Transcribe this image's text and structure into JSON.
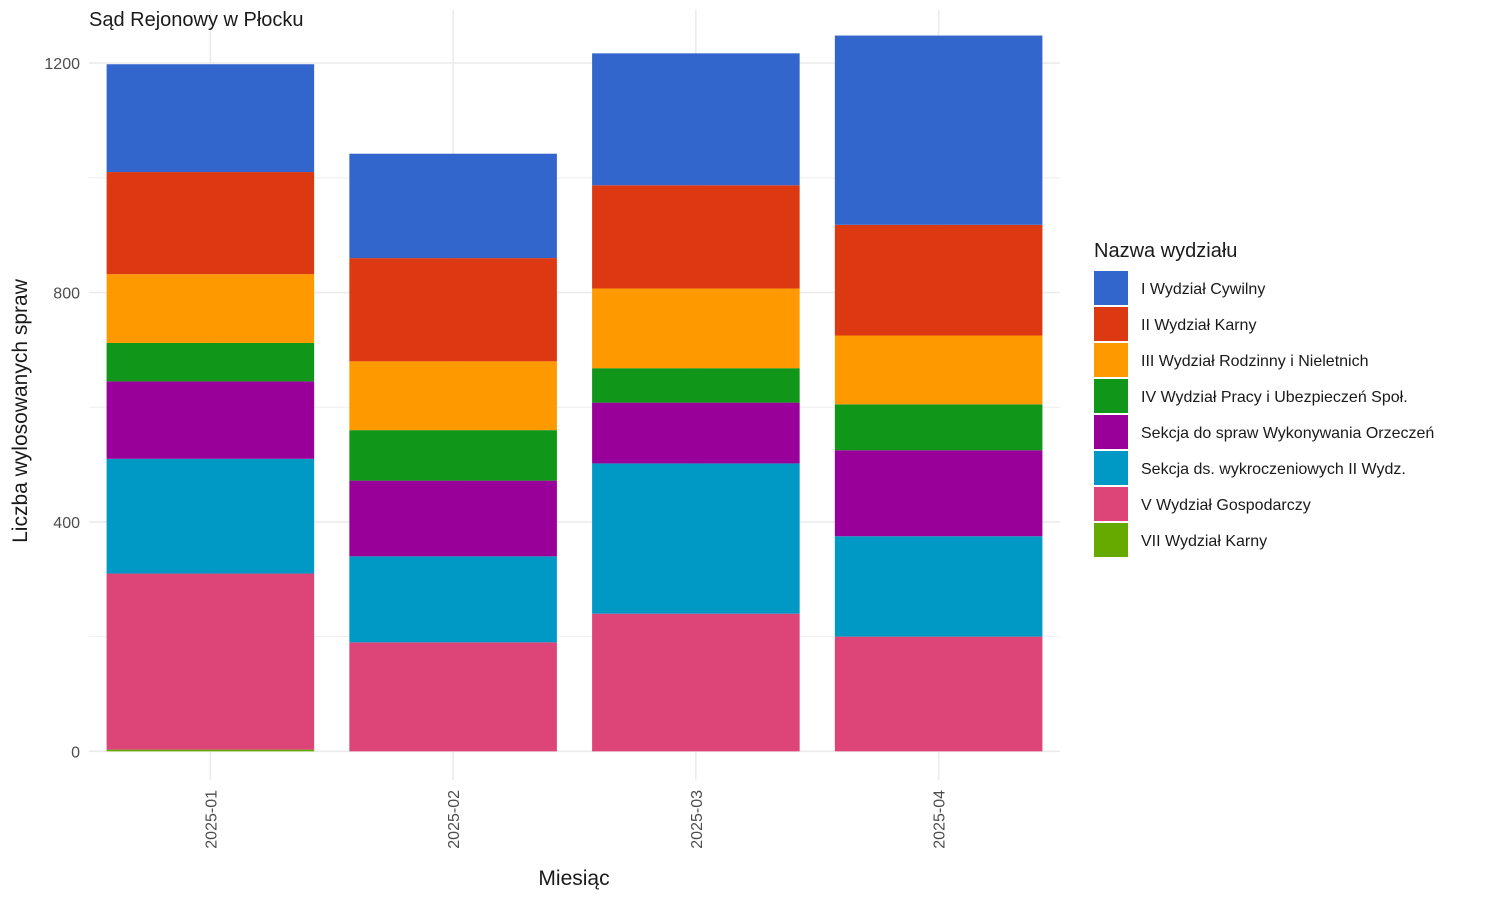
{
  "chart_data": {
    "type": "bar",
    "stacked": true,
    "title": "Sąd Rejonowy w Płocku",
    "xlabel": "Miesiąc",
    "ylabel": "Liczba wylosowanych spraw",
    "categories": [
      "2025-01",
      "2025-02",
      "2025-03",
      "2025-04"
    ],
    "ylim": [
      -50,
      1310
    ],
    "yticks": [
      0,
      400,
      800,
      1200
    ],
    "grid": true,
    "legend": {
      "title": "Nazwa wydziału",
      "position": "right"
    },
    "series": [
      {
        "name": "VII Wydział Karny",
        "color": "#66AA00",
        "values": [
          3,
          0,
          0,
          0
        ]
      },
      {
        "name": "V Wydział Gospodarczy",
        "color": "#DD4477",
        "values": [
          307,
          190,
          240,
          200
        ]
      },
      {
        "name": "Sekcja ds. wykroczeniowych II Wydz.",
        "color": "#0099C6",
        "values": [
          200,
          150,
          262,
          175
        ]
      },
      {
        "name": "Sekcja do spraw Wykonywania Orzeczeń",
        "color": "#990099",
        "values": [
          135,
          132,
          106,
          150
        ]
      },
      {
        "name": "IV Wydział Pracy i Ubezpieczeń Społ.",
        "color": "#109618",
        "values": [
          67,
          88,
          60,
          80
        ]
      },
      {
        "name": "III Wydział Rodzinny i Nieletnich",
        "color": "#FF9900",
        "values": [
          120,
          120,
          139,
          120
        ]
      },
      {
        "name": "II Wydział Karny",
        "color": "#DC3912",
        "values": [
          178,
          180,
          180,
          193
        ]
      },
      {
        "name": "I Wydział Cywilny",
        "color": "#3366CC",
        "values": [
          188,
          182,
          230,
          330
        ]
      }
    ],
    "legend_order": [
      "I Wydział Cywilny",
      "II Wydział Karny",
      "III Wydział Rodzinny i Nieletnich",
      "IV Wydział Pracy i Ubezpieczeń Społ.",
      "Sekcja do spraw Wykonywania Orzeczeń",
      "Sekcja ds. wykroczeniowych II Wydz.",
      "V Wydział Gospodarczy",
      "VII Wydział Karny"
    ]
  }
}
